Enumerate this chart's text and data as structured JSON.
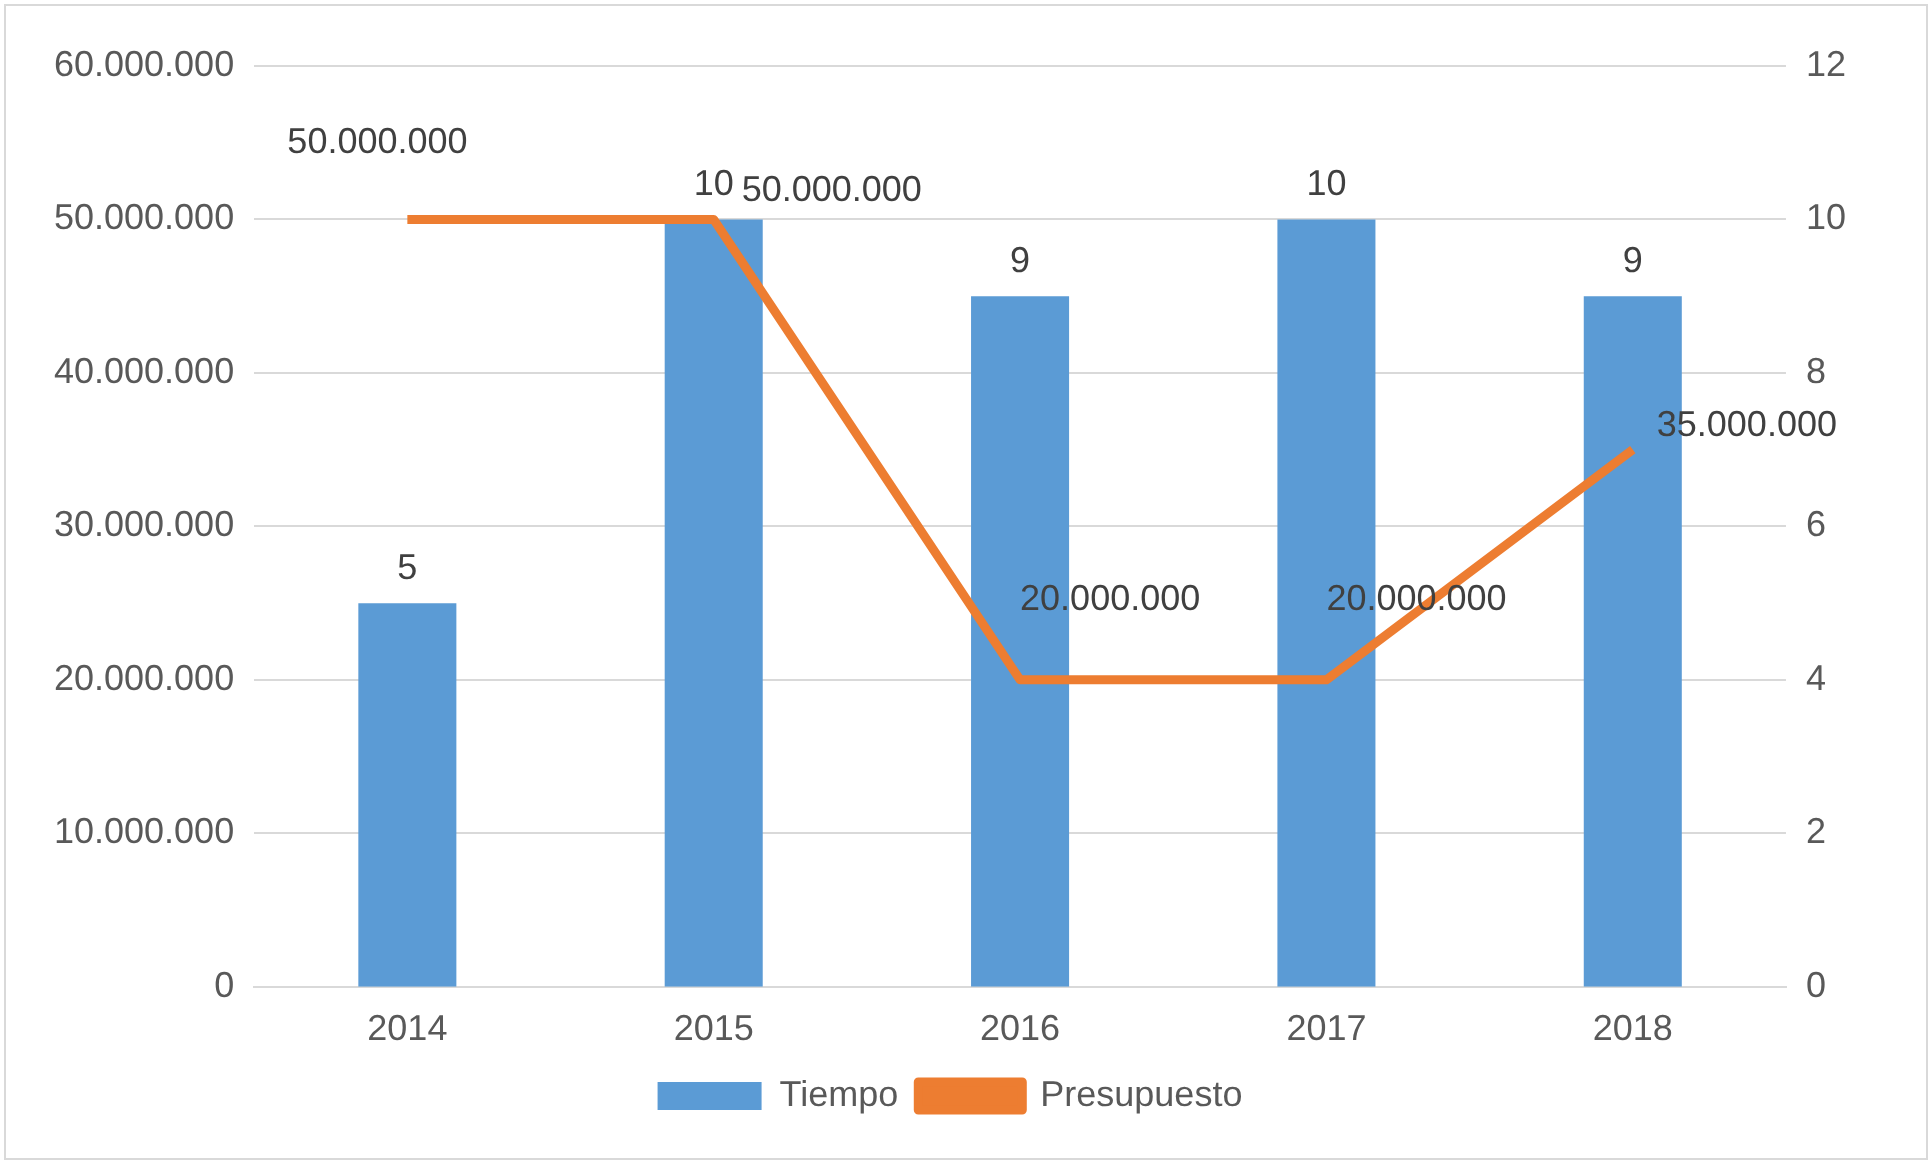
{
  "chart_data": {
    "type": "bar",
    "categories": [
      "2014",
      "2015",
      "2016",
      "2017",
      "2018"
    ],
    "series": [
      {
        "name": "Tiempo",
        "axis": "y2",
        "color": "#5b9bd5",
        "values": [
          5,
          10,
          9,
          10,
          9
        ],
        "value_labels": [
          "5",
          "10",
          "9",
          "10",
          "9"
        ]
      },
      {
        "name": "Presupuesto",
        "type": "line",
        "axis": "y",
        "color": "#ed7d31",
        "values": [
          50000000,
          50000000,
          20000000,
          20000000,
          35000000
        ],
        "value_labels": [
          "50.000.000",
          "50.000.000",
          "20.000.000",
          "20.000.000",
          "35.000.000"
        ]
      }
    ],
    "ylim": [
      0,
      60000000
    ],
    "yticks": [
      {
        "value": 0,
        "label": "0"
      },
      {
        "value": 10000000,
        "label": "10.000.000"
      },
      {
        "value": 20000000,
        "label": "20.000.000"
      },
      {
        "value": 30000000,
        "label": "30.000.000"
      },
      {
        "value": 40000000,
        "label": "40.000.000"
      },
      {
        "value": 50000000,
        "label": "50.000.000"
      },
      {
        "value": 60000000,
        "label": "60.000.000"
      }
    ],
    "y2lim": [
      0,
      12
    ],
    "y2ticks": [
      0,
      2,
      4,
      6,
      8,
      10,
      12
    ],
    "grid": "y",
    "legend": "bottom",
    "marker": "none",
    "line_style": "solid"
  }
}
